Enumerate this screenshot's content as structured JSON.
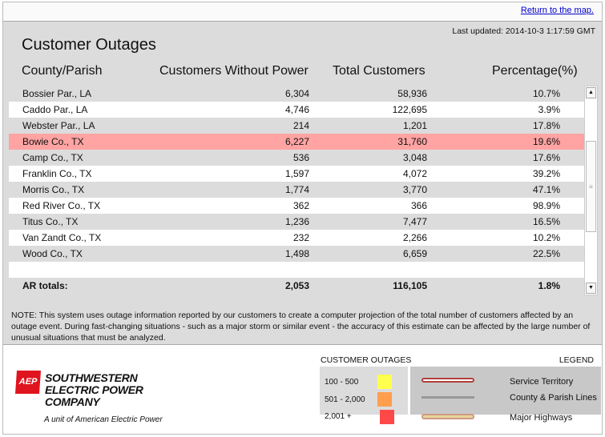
{
  "header": {
    "return_link": "Return to the map.",
    "last_updated": "Last updated: 2014-10-3 1:17:59 GMT",
    "title": "Customer Outages"
  },
  "columns": [
    "County/Parish",
    "Customers Without Power",
    "Total Customers",
    "Percentage(%)"
  ],
  "rows": [
    {
      "name": "Bossier Par., LA",
      "without": "6,304",
      "total": "58,936",
      "pct": "10.7%"
    },
    {
      "name": "Caddo Par., LA",
      "without": "4,746",
      "total": "122,695",
      "pct": "3.9%"
    },
    {
      "name": "Webster Par., LA",
      "without": "214",
      "total": "1,201",
      "pct": "17.8%"
    },
    {
      "name": "Bowie Co., TX",
      "without": "6,227",
      "total": "31,760",
      "pct": "19.6%",
      "highlight": true
    },
    {
      "name": "Camp Co., TX",
      "without": "536",
      "total": "3,048",
      "pct": "17.6%"
    },
    {
      "name": "Franklin Co., TX",
      "without": "1,597",
      "total": "4,072",
      "pct": "39.2%"
    },
    {
      "name": "Morris Co., TX",
      "without": "1,774",
      "total": "3,770",
      "pct": "47.1%"
    },
    {
      "name": "Red River Co., TX",
      "without": "362",
      "total": "366",
      "pct": "98.9%"
    },
    {
      "name": "Titus Co., TX",
      "without": "1,236",
      "total": "7,477",
      "pct": "16.5%"
    },
    {
      "name": "Van Zandt Co., TX",
      "without": "232",
      "total": "2,266",
      "pct": "10.2%"
    },
    {
      "name": "Wood Co., TX",
      "without": "1,498",
      "total": "6,659",
      "pct": "22.5%"
    }
  ],
  "totals": {
    "name": "AR totals:",
    "without": "2,053",
    "total": "116,105",
    "pct": "1.8%"
  },
  "note": "NOTE: This system uses outage information reported by our customers to create a computer projection of the total number of customers affected by an outage event. During fast-changing situations - such as a major storm or similar event - the accuracy of this estimate can be affected by the large number of unusual situations that must be analyzed.",
  "logo": {
    "mark": "AEP",
    "name_lines": [
      "SOUTHWESTERN",
      "ELECTRIC POWER",
      "COMPANY"
    ],
    "tagline": "A unit of American Electric Power"
  },
  "outage_legend": {
    "title": "CUSTOMER OUTAGES",
    "items": [
      {
        "label": "100 - 500",
        "color": "#ffff4d"
      },
      {
        "label": "501 - 2,000",
        "color": "#ff9f4d"
      },
      {
        "label": "2,001 +",
        "color": "#ff4848"
      }
    ]
  },
  "map_legend": {
    "title": "LEGEND",
    "items": [
      {
        "label": "Service Territory"
      },
      {
        "label": "County & Parish Lines"
      },
      {
        "label": "Major Highways"
      }
    ]
  },
  "colors": {
    "highlight_row": "#ffa3a3",
    "panel": "#dcdcdc",
    "link": "#0000cc"
  }
}
